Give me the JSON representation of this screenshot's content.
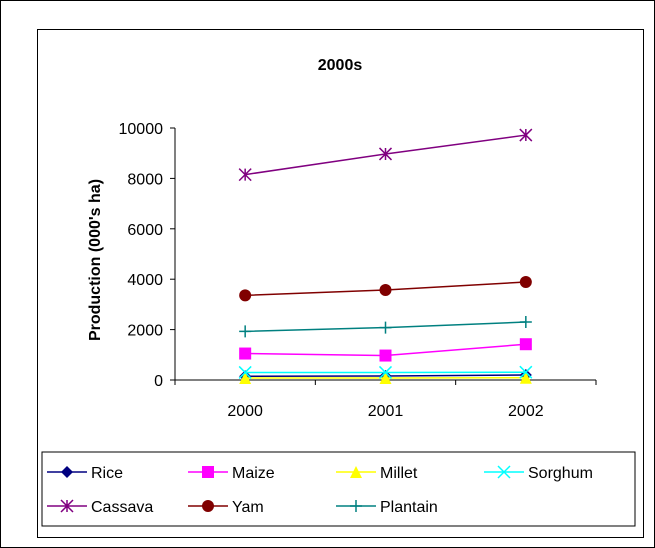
{
  "chart_data": {
    "type": "line",
    "title": "2000s",
    "xlabel": "",
    "ylabel": "Production (000's ha)",
    "categories": [
      "2000",
      "2001",
      "2002"
    ],
    "ylim": [
      0,
      10000
    ],
    "yticks": [
      0,
      2000,
      4000,
      6000,
      8000,
      10000
    ],
    "grid": false,
    "legend_position": "bottom",
    "series": [
      {
        "name": "Rice",
        "values": [
          150,
          160,
          200
        ],
        "color": "#000080",
        "marker": "diamond"
      },
      {
        "name": "Maize",
        "values": [
          1050,
          970,
          1420
        ],
        "color": "#FF00FF",
        "marker": "square"
      },
      {
        "name": "Millet",
        "values": [
          80,
          80,
          90
        ],
        "color": "#FFFF00",
        "marker": "triangle"
      },
      {
        "name": "Sorghum",
        "values": [
          300,
          300,
          310
        ],
        "color": "#00FFFF",
        "marker": "x"
      },
      {
        "name": "Cassava",
        "values": [
          8150,
          8970,
          9720
        ],
        "color": "#800080",
        "marker": "star"
      },
      {
        "name": "Yam",
        "values": [
          3360,
          3570,
          3890
        ],
        "color": "#800000",
        "marker": "circle"
      },
      {
        "name": "Plantain",
        "values": [
          1930,
          2080,
          2300
        ],
        "color": "#008080",
        "marker": "plus"
      }
    ]
  }
}
